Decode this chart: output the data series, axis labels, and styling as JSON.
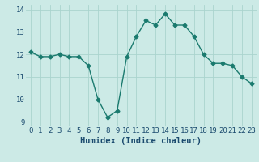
{
  "x": [
    0,
    1,
    2,
    3,
    4,
    5,
    6,
    7,
    8,
    9,
    10,
    11,
    12,
    13,
    14,
    15,
    16,
    17,
    18,
    19,
    20,
    21,
    22,
    23
  ],
  "y": [
    12.1,
    11.9,
    11.9,
    12.0,
    11.9,
    11.9,
    11.5,
    10.0,
    9.2,
    9.5,
    11.9,
    12.8,
    13.5,
    13.3,
    13.8,
    13.3,
    13.3,
    12.8,
    12.0,
    11.6,
    11.6,
    11.5,
    11.0,
    10.7
  ],
  "xlabel": "Humidex (Indice chaleur)",
  "xlim": [
    -0.5,
    23.5
  ],
  "ylim": [
    8.8,
    14.2
  ],
  "yticks": [
    9,
    10,
    11,
    12,
    13,
    14
  ],
  "xtick_labels": [
    "0",
    "1",
    "2",
    "3",
    "4",
    "5",
    "6",
    "7",
    "8",
    "9",
    "10",
    "11",
    "12",
    "13",
    "14",
    "15",
    "16",
    "17",
    "18",
    "19",
    "20",
    "21",
    "22",
    "23"
  ],
  "line_color": "#1a7a6e",
  "marker": "D",
  "marker_size": 2.5,
  "bg_color": "#cceae6",
  "grid_color": "#aad4ce",
  "tick_label_color": "#1a4a6e",
  "xlabel_color": "#1a4a6e",
  "xlabel_fontsize": 7.5,
  "tick_fontsize": 6.5
}
